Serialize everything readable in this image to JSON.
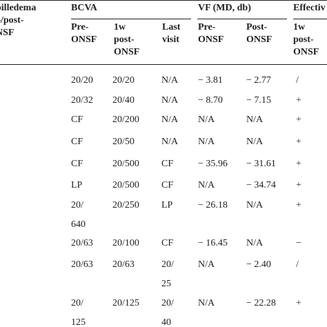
{
  "header": {
    "papilledema": [
      "pilledema",
      "–/post-",
      "NSF"
    ],
    "bcva": "BCVA",
    "vf": "VF (MD, db)",
    "effective": "Effectiv",
    "sub": {
      "bcva_pre": [
        "Pre-",
        "ONSF"
      ],
      "bcva_1w": [
        "1w",
        "post-",
        "ONSF"
      ],
      "bcva_last": [
        "Last",
        "visit"
      ],
      "vf_pre": [
        "Pre-",
        "ONSF"
      ],
      "vf_post": [
        "Post-",
        "ONSF"
      ],
      "eff_1w": [
        "1w",
        "post-",
        "ONSF"
      ]
    }
  },
  "rows": [
    {
      "pre": [
        "20/20"
      ],
      "w1": [
        "20/20"
      ],
      "last": [
        "N/A"
      ],
      "vf_pre": [
        "− 3.81"
      ],
      "vf_post": [
        "− 2.77"
      ],
      "eff": "/"
    },
    {
      "pre": [
        "20/32"
      ],
      "w1": [
        "20/40"
      ],
      "last": [
        "N/A"
      ],
      "vf_pre": [
        "− 8.70"
      ],
      "vf_post": [
        "− 7.15"
      ],
      "eff": "+"
    },
    {
      "pre": [
        "CF"
      ],
      "w1": [
        "20/200"
      ],
      "last": [
        "N/A"
      ],
      "vf_pre": [
        "N/A"
      ],
      "vf_post": [
        "N/A"
      ],
      "eff": "+"
    },
    {
      "pre": [
        "CF"
      ],
      "w1": [
        "20/50"
      ],
      "last": [
        "N/A"
      ],
      "vf_pre": [
        "N/A"
      ],
      "vf_post": [
        "N/A"
      ],
      "eff": "+"
    },
    {
      "pre": [
        "CF"
      ],
      "w1": [
        "20/500"
      ],
      "last": [
        "CF"
      ],
      "vf_pre": [
        "− 35.96"
      ],
      "vf_post": [
        "− 31.61"
      ],
      "eff": "+"
    },
    {
      "pre": [
        "LP"
      ],
      "w1": [
        "20/500"
      ],
      "last": [
        "CF"
      ],
      "vf_pre": [
        "N/A"
      ],
      "vf_post": [
        "− 34.74"
      ],
      "eff": "+"
    },
    {
      "pre": [
        "20/",
        "640"
      ],
      "w1": [
        "20/250"
      ],
      "last": [
        "LP"
      ],
      "vf_pre": [
        "− 26.18"
      ],
      "vf_post": [
        "N/A"
      ],
      "eff": "+"
    },
    {
      "pre": [
        "20/63"
      ],
      "w1": [
        "20/100"
      ],
      "last": [
        "CF"
      ],
      "vf_pre": [
        "− 16.45"
      ],
      "vf_post": [
        "N/A"
      ],
      "eff": "−"
    },
    {
      "pre": [
        "20/63"
      ],
      "w1": [
        "20/63"
      ],
      "last": [
        "20/",
        "25"
      ],
      "vf_pre": [
        "N/A"
      ],
      "vf_post": [
        "− 2.40"
      ],
      "eff": "/"
    },
    {
      "pre": [
        "20/",
        "125"
      ],
      "w1": [
        "20/125"
      ],
      "last": [
        "20/",
        "40"
      ],
      "vf_pre": [
        "N/A"
      ],
      "vf_post": [
        "− 22.28"
      ],
      "eff": "+"
    }
  ]
}
